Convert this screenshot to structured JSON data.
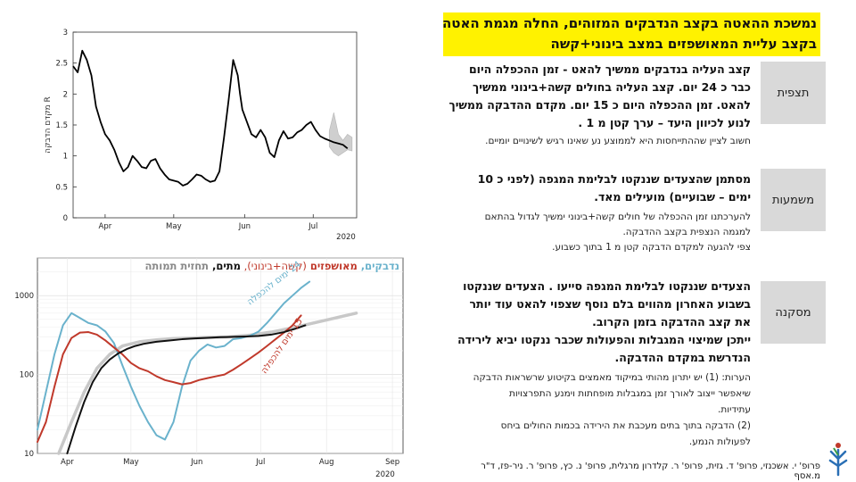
{
  "slide_title": {
    "line1": "נמשכת ההאטה בקצב הנדבקים המזוהים, החלה מגמת האטה",
    "line2": "בקצב עליית המאושפזים במצב בינוני+קשה"
  },
  "sections": [
    {
      "label": "תצפית",
      "main_lines": [
        "קצב העליה בנדבקים ממשיך להאט - זמן ההכפלה היום",
        "כבר כ 24 יום. קצב העליה בחולים קשה+בינוני ממשיך",
        "להאט. זמן ההכפלה היום כ 15 יום. מקדם ההדבקה ממשיך",
        "לנוע לכיוון היעד – ערך קטן מ 1 ."
      ],
      "sub_lines": [
        "חשוב לציין שההתייחסות היא לממוצע נע שאינו רגיש לשינויים יומיים."
      ]
    },
    {
      "label": "משמעות",
      "main_lines": [
        "מסתמן שהצעדים שננקטו לבלימת המגפה (לפני כ 10",
        "ימים – שבועיים) מועילים מאד."
      ],
      "sub_lines": [
        "להערכתנו זמן ההכפלה של חולים קשה+בינוני ימשיך לגדול בהתאם",
        "למגמה הנצפית בקצב ההדבקה.",
        "צפי להגעה למקדם הדבקה קטן מ 1 בתוך כשבוע."
      ]
    },
    {
      "label": "מסקנה",
      "main_lines": [
        "הצעדים שננקטו לבלימת המגפה סייעו . הצעדים שננקטו",
        "בשבוע האחרון מהווים בלם נוסף שצפוי להאט עוד יותר",
        "את קצב ההדבקה בזמן הקרוב.",
        "ייתכן שמיצוי המגבלות והפעולות שכבר ננקטו יביא לירידה",
        "הנדרשת במקדם ההדבקה."
      ],
      "sub_lines": [
        "הערות: (1) יש יתרון מהותי במיקוד מאמצים בקיטוע שרשראות הדבקה",
        "שיאפשר ייצוב לאורך זמן במגבלות מופחתות וימנע התפרצויות",
        "עתידיות.",
        " (2) הדבקה בתוך בתים מעכבת את הירידה בכמות החולים ביחס",
        "לפעולות הנמע."
      ]
    }
  ],
  "credits": "פרופ' י. אשכנזי, פרופ' ד. גזית, פרופ' ר. קלדרון מרגלית, פרופ' נ. כץ, פרופ' ר. ניר-פז, ד\"ר מ.אסף",
  "logo_icon": "tree-logo-icon",
  "colors": {
    "cases": "#6ab2cc",
    "hospitalized": "#c0392b",
    "deaths": "#111111",
    "forecast": "#c8c8c8",
    "title_highlight": "#fff200",
    "label_bg": "#d9d9d9"
  },
  "chart_data": [
    {
      "type": "line",
      "title": "",
      "ylabel": "מקדם הדבקה R",
      "xlabel": "",
      "year_label": "2020",
      "ylim": [
        0,
        3
      ],
      "yticks": [
        "0",
        "0.5",
        "1",
        "1.5",
        "2",
        "2.5",
        "3"
      ],
      "x_ticks": [
        {
          "day": 14,
          "label": "Apr"
        },
        {
          "day": 44,
          "label": "May"
        },
        {
          "day": 75,
          "label": "Jun"
        },
        {
          "day": 105,
          "label": "Jul"
        }
      ],
      "xlim": [
        0,
        124
      ],
      "grid": false,
      "series": [
        {
          "x": [
            0,
            2,
            4,
            6,
            8,
            10,
            12,
            14,
            16,
            18,
            20,
            22,
            24,
            26,
            28,
            30,
            32,
            34,
            36,
            38,
            40,
            42,
            44,
            46,
            48,
            50,
            52,
            54,
            56,
            58,
            60,
            62,
            64,
            66,
            68,
            70,
            72,
            73,
            74,
            76,
            78,
            80,
            82,
            84,
            86,
            88,
            90,
            92,
            94,
            96,
            98,
            100,
            102,
            104,
            106,
            108,
            110,
            112,
            114,
            116,
            118,
            120
          ],
          "values": [
            2.45,
            2.35,
            2.7,
            2.55,
            2.3,
            1.8,
            1.55,
            1.35,
            1.25,
            1.1,
            0.9,
            0.75,
            0.82,
            1.0,
            0.92,
            0.82,
            0.8,
            0.92,
            0.95,
            0.8,
            0.7,
            0.62,
            0.6,
            0.58,
            0.52,
            0.55,
            0.62,
            0.7,
            0.68,
            0.62,
            0.58,
            0.6,
            0.75,
            1.3,
            1.9,
            2.55,
            2.3,
            2.0,
            1.75,
            1.55,
            1.35,
            1.3,
            1.42,
            1.3,
            1.05,
            0.98,
            1.25,
            1.4,
            1.28,
            1.3,
            1.38,
            1.42,
            1.5,
            1.55,
            1.42,
            1.32,
            1.28,
            1.25,
            1.22,
            1.2,
            1.18,
            1.12
          ]
        }
      ],
      "uncertainty_band": {
        "x": [
          112,
          114,
          116,
          118,
          120,
          122
        ],
        "upper": [
          1.4,
          1.7,
          1.35,
          1.25,
          1.35,
          1.3
        ],
        "lower": [
          1.15,
          1.05,
          1.0,
          1.05,
          1.1,
          1.08
        ]
      }
    },
    {
      "type": "line",
      "title": "",
      "legend_parts": [
        {
          "text": "נדבקים, ",
          "series": "cases"
        },
        {
          "text": "מאושפזים ",
          "series": "hospitalized"
        },
        {
          "text": "(קשה+בינוני), ",
          "series": "hospitalized_light"
        },
        {
          "text": "מתים, ",
          "series": "deaths"
        },
        {
          "text": "תחזית תמותה",
          "series": "forecast"
        }
      ],
      "annotations": [
        {
          "text": "24 ימים להכפלה",
          "series": "cases"
        },
        {
          "text": "15 ימים להכפלה",
          "series": "hospitalized"
        }
      ],
      "year_label": "2020",
      "yscale": "log",
      "ylim": [
        10,
        3000
      ],
      "yticks": [
        "10",
        "100",
        "1000"
      ],
      "x_ticks": [
        {
          "day": 14,
          "label": "Apr"
        },
        {
          "day": 44,
          "label": "May"
        },
        {
          "day": 75,
          "label": "Jun"
        },
        {
          "day": 105,
          "label": "Jul"
        },
        {
          "day": 136,
          "label": "Aug"
        },
        {
          "day": 167,
          "label": "Sep"
        }
      ],
      "xlim": [
        0,
        172
      ],
      "grid": true,
      "series": [
        {
          "name": "נדבקים",
          "key": "cases",
          "x": [
            0,
            4,
            8,
            12,
            16,
            20,
            24,
            28,
            32,
            36,
            40,
            44,
            48,
            52,
            56,
            60,
            64,
            68,
            72,
            76,
            80,
            84,
            88,
            92,
            96,
            100,
            104,
            108,
            112,
            116,
            120,
            124,
            128
          ],
          "values": [
            20,
            60,
            180,
            420,
            600,
            520,
            450,
            420,
            350,
            250,
            130,
            70,
            40,
            25,
            17,
            15,
            25,
            70,
            150,
            200,
            240,
            220,
            230,
            280,
            290,
            310,
            350,
            450,
            600,
            800,
            1000,
            1250,
            1500
          ]
        },
        {
          "name": "מאושפזים (קשה+בינוני)",
          "key": "hospitalized",
          "x": [
            0,
            4,
            8,
            12,
            16,
            20,
            24,
            28,
            32,
            36,
            40,
            44,
            48,
            52,
            56,
            60,
            64,
            68,
            72,
            76,
            80,
            84,
            88,
            92,
            96,
            100,
            104,
            108,
            112,
            116,
            120,
            124
          ],
          "values": [
            14,
            25,
            70,
            180,
            290,
            340,
            345,
            320,
            270,
            220,
            180,
            140,
            120,
            110,
            95,
            85,
            80,
            75,
            78,
            85,
            90,
            95,
            100,
            115,
            135,
            160,
            190,
            230,
            280,
            340,
            420,
            560
          ]
        },
        {
          "name": "מתים",
          "key": "deaths",
          "x": [
            14,
            18,
            22,
            26,
            30,
            34,
            38,
            42,
            46,
            50,
            56,
            62,
            68,
            74,
            80,
            86,
            92,
            98,
            104,
            110,
            116,
            122,
            126
          ],
          "values": [
            10,
            22,
            45,
            80,
            120,
            155,
            185,
            210,
            230,
            245,
            260,
            270,
            280,
            287,
            292,
            297,
            300,
            303,
            308,
            320,
            345,
            385,
            420
          ]
        },
        {
          "name": "תחזית תמותה",
          "key": "forecast",
          "x": [
            10,
            16,
            22,
            28,
            34,
            40,
            48,
            56,
            64,
            72,
            80,
            90,
            100,
            110,
            120,
            130,
            140,
            150
          ],
          "values": [
            10,
            25,
            60,
            120,
            180,
            230,
            260,
            275,
            285,
            290,
            295,
            300,
            315,
            345,
            390,
            450,
            520,
            600
          ]
        }
      ]
    }
  ]
}
